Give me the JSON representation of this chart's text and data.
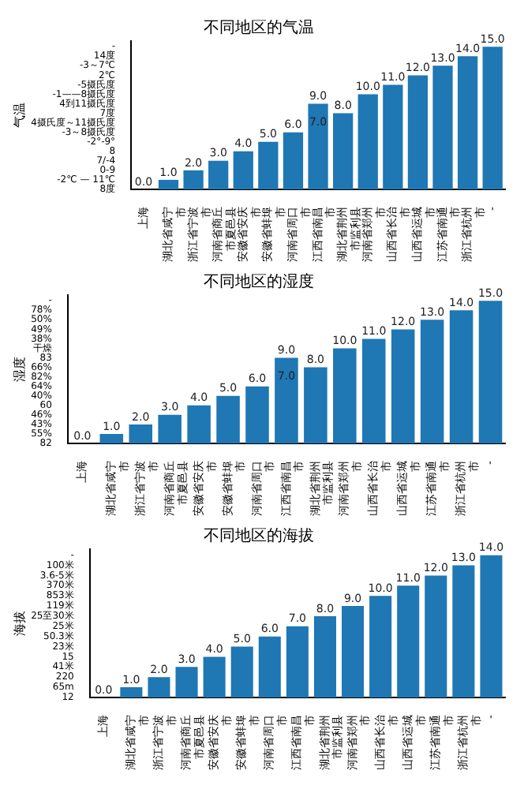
{
  "chart_data": [
    {
      "type": "bar",
      "title": "不同地区的气温",
      "ylabel": "气温",
      "color": "#1f77b4",
      "categories": [
        "上海",
        "湖北省咸宁市",
        "浙江省宁波市",
        "河南省商丘市夏邑县",
        "安徽省安庆市",
        "安徽省蚌埠市",
        "河南省周口市",
        "江西省南昌市",
        "湖北省荆州市监利县",
        "河南省郑州市",
        "山西省长治市",
        "山西省运城市",
        "江苏省南通市",
        "浙江省杭州市",
        "-"
      ],
      "values": [
        0,
        1,
        2,
        3,
        4,
        5,
        6,
        9,
        8,
        10,
        11,
        12,
        13,
        14,
        15
      ],
      "value_labels": [
        "0.0",
        "1.0",
        "2.0",
        "3.0",
        "4.0",
        "5.0",
        "6.0",
        "9.0",
        "8.0",
        "10.0",
        "11.0",
        "12.0",
        "13.0",
        "14.0",
        "15.0"
      ],
      "annotations": [
        {
          "text": "7.0",
          "x": "江西省南昌市",
          "y": 7
        }
      ],
      "y_categories": [
        "-",
        "14度",
        "-3～7℃",
        "2℃",
        "-5摄氏度",
        "-1——8摄氏度",
        "4到11摄氏度",
        "7度",
        "4摄氏度～11摄氏度",
        "-3～8摄氏度",
        "-2°-9°",
        "8",
        "7/-4",
        "0-9",
        "-2℃ — 11℃",
        "8度"
      ]
    },
    {
      "type": "bar",
      "title": "不同地区的湿度",
      "ylabel": "湿度",
      "color": "#1f77b4",
      "categories": [
        "上海",
        "湖北省咸宁市",
        "浙江省宁波市",
        "河南省商丘市夏邑县",
        "安徽省安庆市",
        "安徽省蚌埠市",
        "河南省周口市",
        "江西省南昌市",
        "湖北省荆州市监利县",
        "河南省郑州市",
        "山西省长治市",
        "山西省运城市",
        "江苏省南通市",
        "浙江省杭州市",
        "-"
      ],
      "values": [
        0,
        1,
        2,
        3,
        4,
        5,
        6,
        9,
        8,
        10,
        11,
        12,
        13,
        14,
        15
      ],
      "value_labels": [
        "0.0",
        "1.0",
        "2.0",
        "3.0",
        "4.0",
        "5.0",
        "6.0",
        "9.0",
        "8.0",
        "10.0",
        "11.0",
        "12.0",
        "13.0",
        "14.0",
        "15.0"
      ],
      "annotations": [
        {
          "text": "7.0",
          "x": "江西省南昌市",
          "y": 7
        }
      ],
      "y_categories": [
        "-",
        "78%",
        "50%",
        "49%",
        "38%",
        "干燥",
        "83",
        "66%",
        "82%",
        "64%",
        "40%",
        "60",
        "46%",
        "43%",
        "55%",
        "82"
      ]
    },
    {
      "type": "bar",
      "title": "不同地区的海拔",
      "ylabel": "海拔",
      "color": "#1f77b4",
      "categories": [
        "上海",
        "湖北省咸宁市",
        "浙江省宁波市",
        "河南省商丘市夏邑县",
        "安徽省安庆市",
        "安徽省蚌埠市",
        "河南省周口市",
        "江西省南昌市",
        "湖北省荆州市监利县",
        "河南省郑州市",
        "山西省长治市",
        "山西省运城市",
        "江苏省南通市",
        "浙江省杭州市",
        "-"
      ],
      "values": [
        0,
        1,
        2,
        3,
        4,
        5,
        6,
        7,
        8,
        9,
        10,
        11,
        12,
        13,
        14
      ],
      "value_labels": [
        "0.0",
        "1.0",
        "2.0",
        "3.0",
        "4.0",
        "5.0",
        "6.0",
        "7.0",
        "8.0",
        "9.0",
        "10.0",
        "11.0",
        "12.0",
        "13.0",
        "14.0"
      ],
      "y_categories": [
        "-",
        "100米",
        "3.6-5米",
        "370米",
        "853米",
        "119米",
        "25至30米",
        "25米",
        "50.3米",
        "23米",
        "15",
        "41米",
        "220",
        "65m",
        "12"
      ]
    }
  ]
}
